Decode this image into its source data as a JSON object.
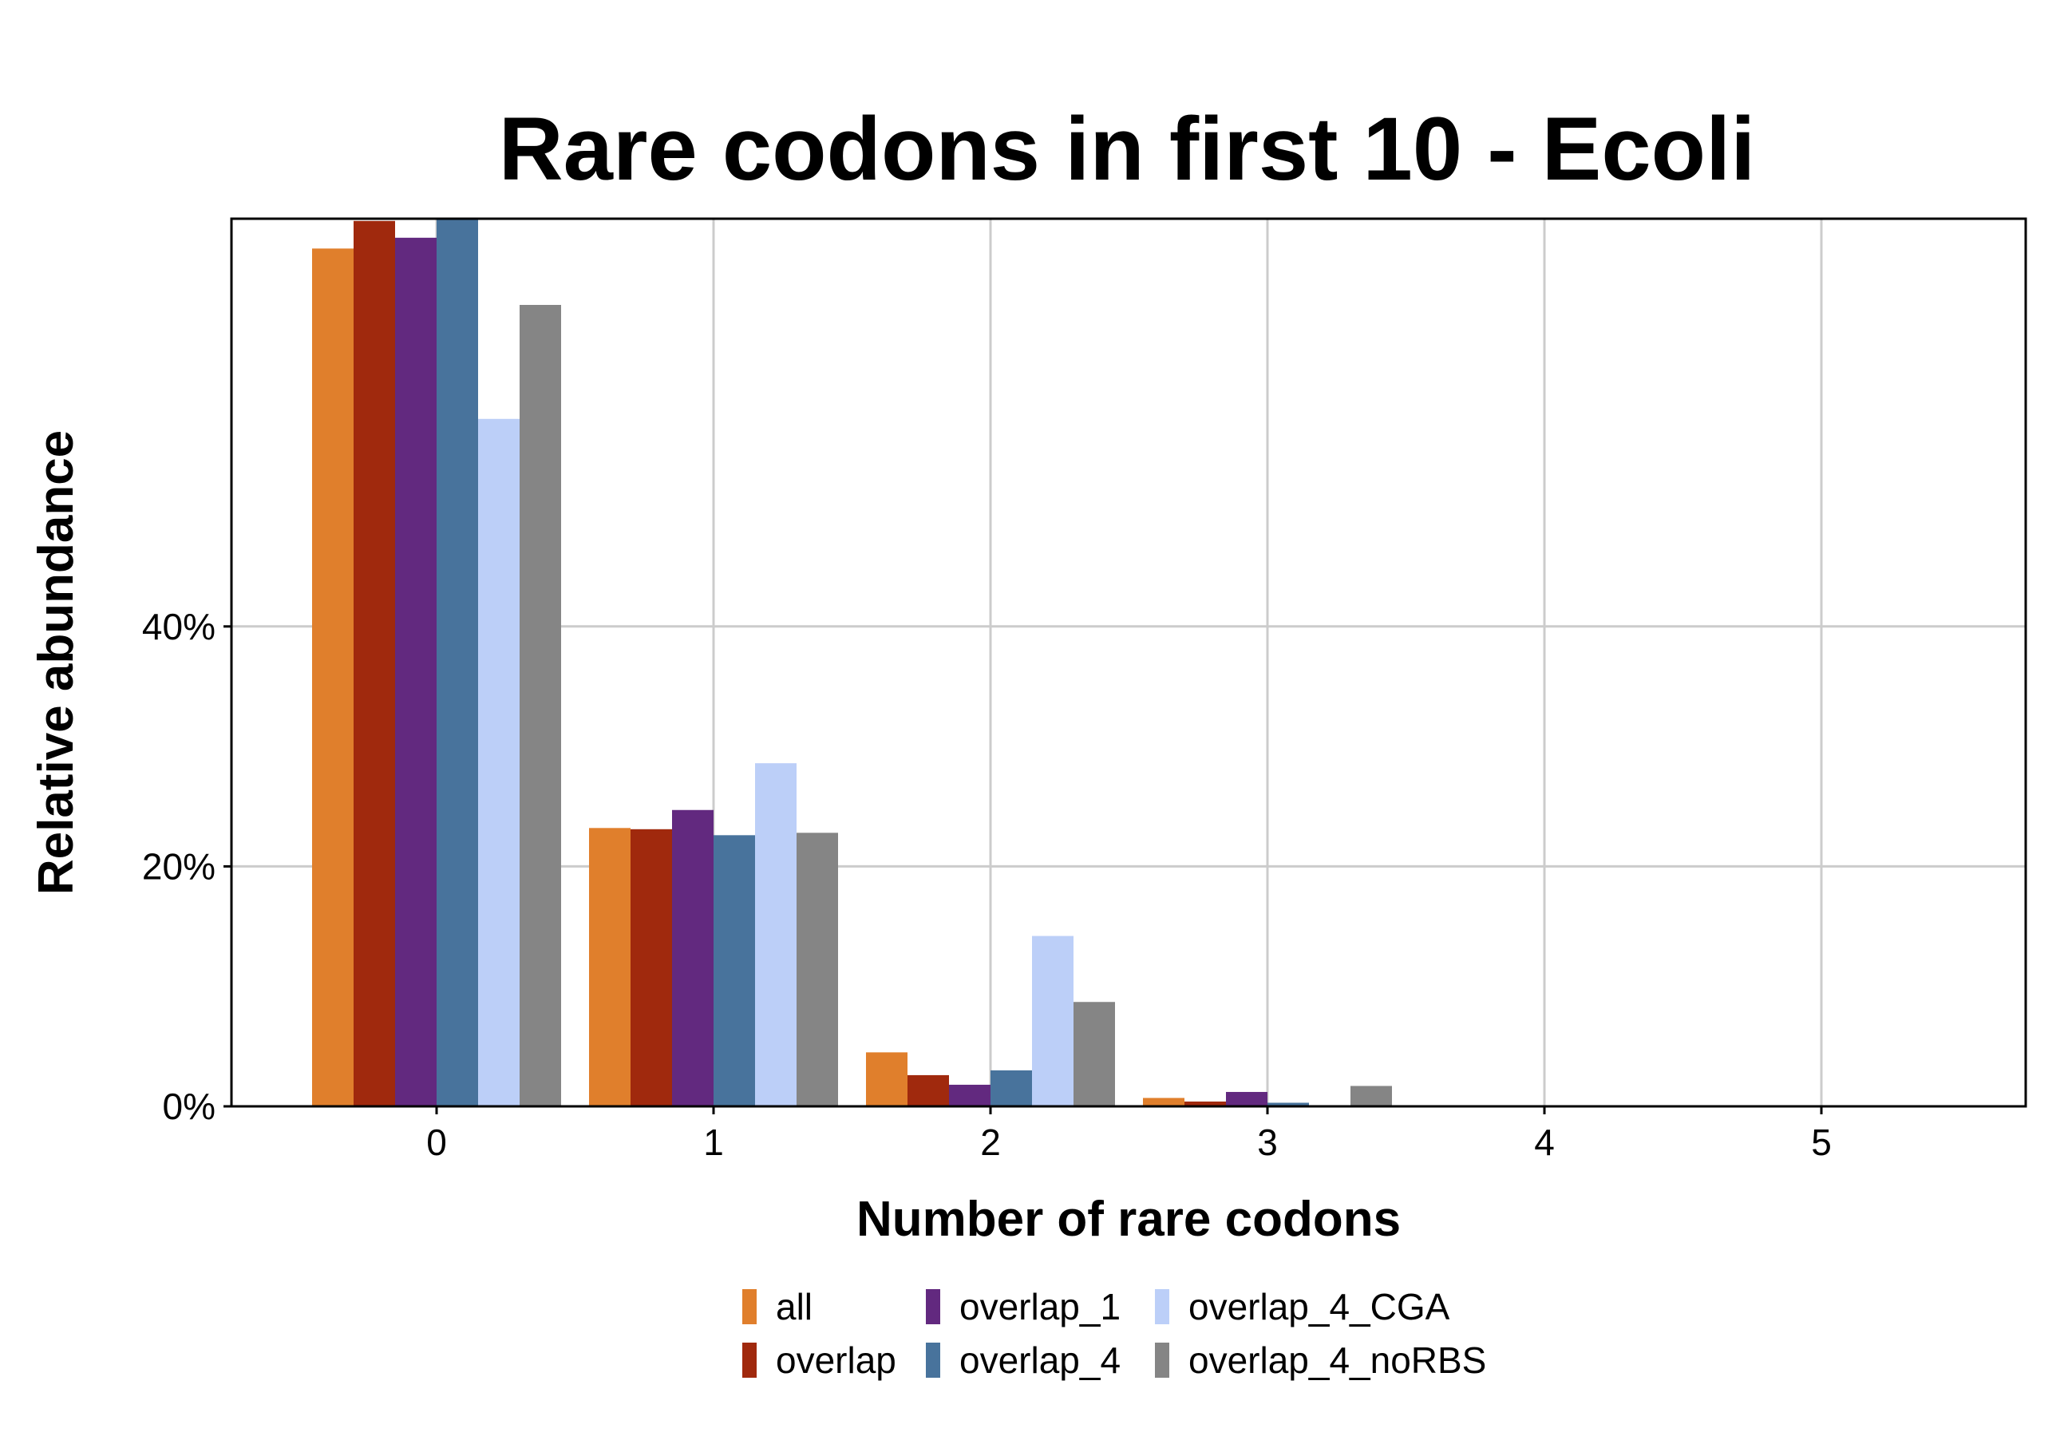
{
  "chart_data": {
    "type": "bar",
    "title": "Rare codons in first 10 - Ecoli",
    "xlabel": "Number of rare codons",
    "ylabel": "Relative abundance",
    "categories": [
      "0",
      "1",
      "2",
      "3",
      "4",
      "5"
    ],
    "y_ticks": [
      {
        "value": 0,
        "label": "0%"
      },
      {
        "value": 20,
        "label": "20%"
      },
      {
        "value": 40,
        "label": "40%"
      }
    ],
    "ylim": [
      0,
      74
    ],
    "grid": true,
    "legend_position": "bottom",
    "series": [
      {
        "name": "all",
        "color": "#e07f2c",
        "values": [
          71.5,
          23.2,
          4.5,
          0.7,
          0,
          0
        ]
      },
      {
        "name": "overlap",
        "color": "#a0290d",
        "values": [
          73.8,
          23.1,
          2.6,
          0.4,
          0,
          0
        ]
      },
      {
        "name": "overlap_1",
        "color": "#62297f",
        "values": [
          72.4,
          24.7,
          1.8,
          1.2,
          0,
          0
        ]
      },
      {
        "name": "overlap_4",
        "color": "#48739c",
        "values": [
          74.5,
          22.6,
          3.0,
          0.3,
          0,
          0
        ]
      },
      {
        "name": "overlap_4_CGA",
        "color": "#bccff8",
        "values": [
          57.3,
          28.6,
          14.2,
          0,
          0,
          0
        ]
      },
      {
        "name": "overlap_4_noRBS",
        "color": "#858585",
        "values": [
          66.8,
          22.8,
          8.7,
          1.7,
          0,
          0
        ]
      }
    ]
  }
}
